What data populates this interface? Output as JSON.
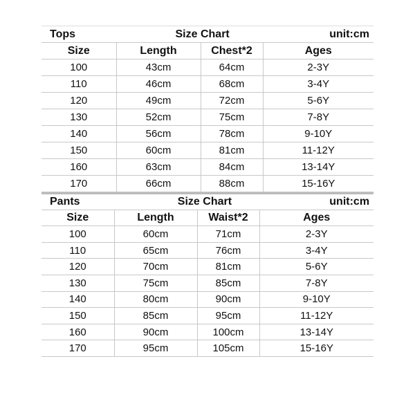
{
  "tops": {
    "label": "Tops",
    "title": "Size Chart",
    "unit": "unit:cm",
    "headers": [
      "Size",
      "Length",
      "Chest*2",
      "Ages"
    ],
    "rows": [
      [
        "100",
        "43cm",
        "64cm",
        "2-3Y"
      ],
      [
        "110",
        "46cm",
        "68cm",
        "3-4Y"
      ],
      [
        "120",
        "49cm",
        "72cm",
        "5-6Y"
      ],
      [
        "130",
        "52cm",
        "75cm",
        "7-8Y"
      ],
      [
        "140",
        "56cm",
        "78cm",
        "9-10Y"
      ],
      [
        "150",
        "60cm",
        "81cm",
        "11-12Y"
      ],
      [
        "160",
        "63cm",
        "84cm",
        "13-14Y"
      ],
      [
        "170",
        "66cm",
        "88cm",
        "15-16Y"
      ]
    ]
  },
  "pants": {
    "label": "Pants",
    "title": "Size Chart",
    "unit": "unit:cm",
    "headers": [
      "Size",
      "Length",
      "Waist*2",
      "Ages"
    ],
    "rows": [
      [
        "100",
        "60cm",
        "71cm",
        "2-3Y"
      ],
      [
        "110",
        "65cm",
        "76cm",
        "3-4Y"
      ],
      [
        "120",
        "70cm",
        "81cm",
        "5-6Y"
      ],
      [
        "130",
        "75cm",
        "85cm",
        "7-8Y"
      ],
      [
        "140",
        "80cm",
        "90cm",
        "9-10Y"
      ],
      [
        "150",
        "85cm",
        "95cm",
        "11-12Y"
      ],
      [
        "160",
        "90cm",
        "100cm",
        "13-14Y"
      ],
      [
        "170",
        "95cm",
        "105cm",
        "15-16Y"
      ]
    ]
  }
}
